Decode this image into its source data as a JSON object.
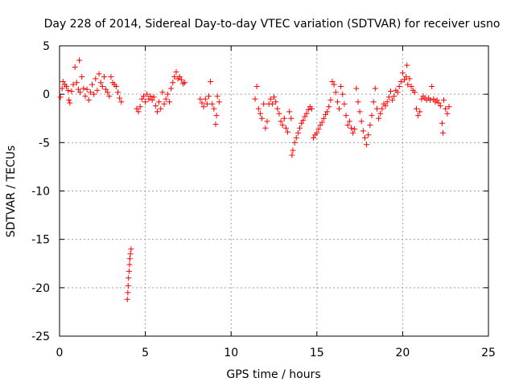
{
  "chart_data": {
    "type": "scatter",
    "title": "Day 228 of 2014, Sidereal Day-to-day VTEC variation (SDTVAR) for receiver usno",
    "xlabel": "GPS time / hours",
    "ylabel": "SDTVAR / TECUs",
    "xlim": [
      0,
      25
    ],
    "ylim": [
      -25,
      5
    ],
    "xticks": [
      0,
      5,
      10,
      15,
      20,
      25
    ],
    "yticks": [
      5,
      0,
      -5,
      -10,
      -15,
      -20,
      -25
    ],
    "grid": true,
    "marker": "plus",
    "color": "#ff0000",
    "series": [
      {
        "name": "SDTVAR",
        "points": [
          [
            0.05,
            -0.3
          ],
          [
            0.15,
            0.6
          ],
          [
            0.2,
            1.3
          ],
          [
            0.3,
            1.0
          ],
          [
            0.4,
            0.8
          ],
          [
            0.5,
            0.4
          ],
          [
            0.55,
            -0.6
          ],
          [
            0.6,
            -0.9
          ],
          [
            0.7,
            0.3
          ],
          [
            0.8,
            1.0
          ],
          [
            0.9,
            2.8
          ],
          [
            1.0,
            1.2
          ],
          [
            1.1,
            0.5
          ],
          [
            1.15,
            3.5
          ],
          [
            1.2,
            0.2
          ],
          [
            1.3,
            1.8
          ],
          [
            1.4,
            0.6
          ],
          [
            1.5,
            -0.2
          ],
          [
            1.6,
            0.5
          ],
          [
            1.7,
            -0.6
          ],
          [
            1.8,
            0.2
          ],
          [
            1.9,
            1.0
          ],
          [
            2.0,
            0.0
          ],
          [
            2.1,
            1.6
          ],
          [
            2.2,
            0.4
          ],
          [
            2.3,
            2.1
          ],
          [
            2.4,
            1.2
          ],
          [
            2.5,
            0.8
          ],
          [
            2.6,
            1.8
          ],
          [
            2.7,
            0.5
          ],
          [
            2.8,
            0.2
          ],
          [
            2.9,
            -0.2
          ],
          [
            3.0,
            1.8
          ],
          [
            3.1,
            1.2
          ],
          [
            3.2,
            1.0
          ],
          [
            3.3,
            0.8
          ],
          [
            3.4,
            0.2
          ],
          [
            3.5,
            -0.4
          ],
          [
            3.6,
            -0.8
          ],
          [
            3.95,
            -21.2
          ],
          [
            3.98,
            -20.5
          ],
          [
            4.0,
            -19.8
          ],
          [
            4.02,
            -19.0
          ],
          [
            4.05,
            -18.3
          ],
          [
            4.08,
            -17.6
          ],
          [
            4.1,
            -17.0
          ],
          [
            4.13,
            -16.5
          ],
          [
            4.17,
            -16.0
          ],
          [
            4.5,
            -1.5
          ],
          [
            4.6,
            -1.8
          ],
          [
            4.7,
            -1.3
          ],
          [
            4.8,
            -0.5
          ],
          [
            4.9,
            -0.2
          ],
          [
            5.0,
            -0.8
          ],
          [
            5.1,
            0.0
          ],
          [
            5.2,
            -0.5
          ],
          [
            5.3,
            -0.2
          ],
          [
            5.4,
            -0.6
          ],
          [
            5.5,
            -0.3
          ],
          [
            5.6,
            -1.2
          ],
          [
            5.7,
            -1.8
          ],
          [
            5.8,
            -0.8
          ],
          [
            5.9,
            -1.5
          ],
          [
            6.0,
            0.2
          ],
          [
            6.1,
            -1.0
          ],
          [
            6.2,
            -0.5
          ],
          [
            6.3,
            0.0
          ],
          [
            6.4,
            -0.8
          ],
          [
            6.5,
            0.6
          ],
          [
            6.6,
            1.2
          ],
          [
            6.7,
            1.8
          ],
          [
            6.8,
            2.3
          ],
          [
            6.9,
            1.6
          ],
          [
            7.0,
            1.8
          ],
          [
            7.1,
            1.5
          ],
          [
            7.2,
            1.1
          ],
          [
            7.3,
            1.2
          ],
          [
            8.2,
            -0.5
          ],
          [
            8.3,
            -0.9
          ],
          [
            8.4,
            -1.3
          ],
          [
            8.5,
            -0.5
          ],
          [
            8.6,
            -1.0
          ],
          [
            8.7,
            -0.2
          ],
          [
            8.8,
            1.3
          ],
          [
            8.9,
            -1.0
          ],
          [
            9.0,
            -1.5
          ],
          [
            9.1,
            -3.1
          ],
          [
            9.15,
            -2.2
          ],
          [
            9.2,
            -0.2
          ],
          [
            9.3,
            -0.8
          ],
          [
            11.4,
            -0.5
          ],
          [
            11.5,
            0.8
          ],
          [
            11.6,
            -1.5
          ],
          [
            11.7,
            -2.0
          ],
          [
            11.8,
            -2.5
          ],
          [
            11.9,
            -1.0
          ],
          [
            12.0,
            -3.5
          ],
          [
            12.1,
            -2.8
          ],
          [
            12.2,
            -1.0
          ],
          [
            12.3,
            -0.5
          ],
          [
            12.4,
            -1.0
          ],
          [
            12.5,
            -0.3
          ],
          [
            12.6,
            -0.8
          ],
          [
            12.7,
            -1.5
          ],
          [
            12.8,
            -2.0
          ],
          [
            12.9,
            -2.8
          ],
          [
            13.0,
            -3.2
          ],
          [
            13.1,
            -2.5
          ],
          [
            13.2,
            -3.5
          ],
          [
            13.3,
            -3.9
          ],
          [
            13.4,
            -1.8
          ],
          [
            13.5,
            -2.5
          ],
          [
            13.55,
            -6.3
          ],
          [
            13.6,
            -5.8
          ],
          [
            13.7,
            -5.0
          ],
          [
            13.8,
            -4.5
          ],
          [
            13.9,
            -4.0
          ],
          [
            14.0,
            -3.5
          ],
          [
            14.1,
            -3.0
          ],
          [
            14.2,
            -2.7
          ],
          [
            14.3,
            -2.3
          ],
          [
            14.4,
            -2.0
          ],
          [
            14.5,
            -1.6
          ],
          [
            14.6,
            -1.3
          ],
          [
            14.7,
            -1.5
          ],
          [
            14.8,
            -4.5
          ],
          [
            14.9,
            -4.2
          ],
          [
            15.0,
            -4.0
          ],
          [
            15.1,
            -3.6
          ],
          [
            15.2,
            -3.2
          ],
          [
            15.3,
            -2.9
          ],
          [
            15.4,
            -2.5
          ],
          [
            15.5,
            -2.1
          ],
          [
            15.6,
            -1.8
          ],
          [
            15.7,
            -1.3
          ],
          [
            15.8,
            -0.6
          ],
          [
            15.9,
            1.3
          ],
          [
            16.0,
            1.0
          ],
          [
            16.1,
            0.2
          ],
          [
            16.2,
            -0.8
          ],
          [
            16.3,
            -1.5
          ],
          [
            16.4,
            0.8
          ],
          [
            16.5,
            0.0
          ],
          [
            16.6,
            -1.0
          ],
          [
            16.7,
            -2.2
          ],
          [
            16.8,
            -3.2
          ],
          [
            16.9,
            -2.8
          ],
          [
            17.0,
            -3.5
          ],
          [
            17.1,
            -4.0
          ],
          [
            17.2,
            -3.6
          ],
          [
            17.3,
            0.6
          ],
          [
            17.4,
            -0.8
          ],
          [
            17.5,
            -1.8
          ],
          [
            17.6,
            -2.8
          ],
          [
            17.7,
            -3.8
          ],
          [
            17.8,
            -4.5
          ],
          [
            17.9,
            -5.2
          ],
          [
            18.0,
            -4.2
          ],
          [
            18.1,
            -3.2
          ],
          [
            18.2,
            -2.2
          ],
          [
            18.3,
            -0.8
          ],
          [
            18.4,
            0.6
          ],
          [
            18.5,
            -1.5
          ],
          [
            18.6,
            -2.5
          ],
          [
            18.7,
            -2.0
          ],
          [
            18.8,
            -1.5
          ],
          [
            18.9,
            -1.0
          ],
          [
            19.0,
            -1.2
          ],
          [
            19.1,
            -0.8
          ],
          [
            19.2,
            -0.3
          ],
          [
            19.3,
            0.3
          ],
          [
            19.4,
            -0.6
          ],
          [
            19.5,
            -0.2
          ],
          [
            19.6,
            0.4
          ],
          [
            19.7,
            0.2
          ],
          [
            19.8,
            0.8
          ],
          [
            19.9,
            1.3
          ],
          [
            20.0,
            2.2
          ],
          [
            20.1,
            1.5
          ],
          [
            20.2,
            1.8
          ],
          [
            20.25,
            3.0
          ],
          [
            20.3,
            1.0
          ],
          [
            20.4,
            1.6
          ],
          [
            20.5,
            0.8
          ],
          [
            20.6,
            0.4
          ],
          [
            20.7,
            0.2
          ],
          [
            20.8,
            -1.5
          ],
          [
            20.9,
            -2.2
          ],
          [
            21.0,
            -1.8
          ],
          [
            21.1,
            -0.5
          ],
          [
            21.2,
            -0.2
          ],
          [
            21.3,
            -0.4
          ],
          [
            21.4,
            -0.6
          ],
          [
            21.5,
            -0.4
          ],
          [
            21.6,
            -0.6
          ],
          [
            21.7,
            0.8
          ],
          [
            21.8,
            -0.5
          ],
          [
            21.9,
            -0.8
          ],
          [
            22.0,
            -0.6
          ],
          [
            22.1,
            -0.9
          ],
          [
            22.2,
            -1.2
          ],
          [
            22.3,
            -3.0
          ],
          [
            22.35,
            -4.0
          ],
          [
            22.4,
            -0.6
          ],
          [
            22.5,
            -1.5
          ],
          [
            22.6,
            -2.0
          ],
          [
            22.7,
            -1.3
          ]
        ]
      }
    ]
  }
}
